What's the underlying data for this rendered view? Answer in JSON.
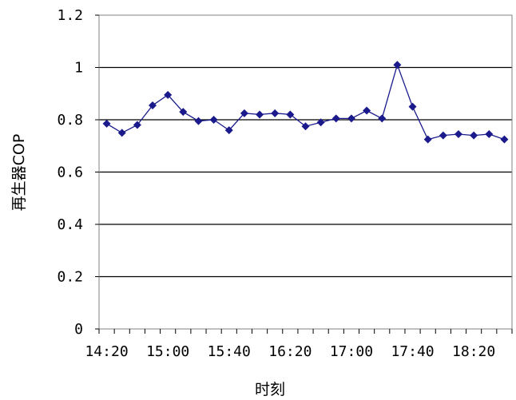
{
  "chart_data": {
    "type": "line",
    "title": "",
    "xlabel": "时刻",
    "ylabel": "再生器COP",
    "ylim": [
      0,
      1.2
    ],
    "yticks": [
      0,
      0.2,
      0.4,
      0.6,
      0.8,
      1,
      1.2
    ],
    "ytick_labels": [
      "0",
      "0.2",
      "0.4",
      "0.6",
      "0.8",
      "1",
      "1.2"
    ],
    "x": [
      "14:20",
      "14:30",
      "14:40",
      "14:50",
      "15:00",
      "15:10",
      "15:20",
      "15:30",
      "15:40",
      "15:50",
      "16:00",
      "16:10",
      "16:20",
      "16:30",
      "16:40",
      "16:50",
      "17:00",
      "17:10",
      "17:20",
      "17:30",
      "17:40",
      "17:50",
      "18:00",
      "18:10",
      "18:20",
      "18:30",
      "18:40"
    ],
    "xtick_labels": [
      "14:20",
      "15:00",
      "15:40",
      "16:20",
      "17:00",
      "17:40",
      "18:20"
    ],
    "grid": "horizontal",
    "series": [
      {
        "color": "#1a1a8c",
        "marker": "diamond",
        "values": [
          0.785,
          0.75,
          0.78,
          0.855,
          0.895,
          0.83,
          0.795,
          0.8,
          0.76,
          0.825,
          0.82,
          0.825,
          0.82,
          0.775,
          0.79,
          0.805,
          0.805,
          0.835,
          0.805,
          1.01,
          0.85,
          0.725,
          0.74,
          0.745,
          0.74,
          0.745,
          0.725
        ]
      }
    ]
  }
}
